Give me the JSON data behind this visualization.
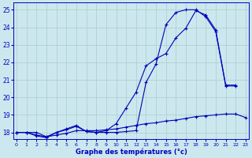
{
  "title": "Graphe des températures (°c)",
  "xlim": [
    -0.3,
    23.3
  ],
  "ylim": [
    17.6,
    25.4
  ],
  "xticks": [
    0,
    1,
    2,
    3,
    4,
    5,
    6,
    7,
    8,
    9,
    10,
    11,
    12,
    13,
    14,
    15,
    16,
    17,
    18,
    19,
    20,
    21,
    22,
    23
  ],
  "yticks": [
    18,
    19,
    20,
    21,
    22,
    23,
    24,
    25
  ],
  "bg_color": "#cce8ee",
  "line_color": "#0000bb",
  "grid_color": "#aacccc",
  "series1": {
    "x": [
      0,
      1,
      2,
      3,
      4,
      5,
      6,
      7,
      8,
      9,
      10,
      11,
      12,
      13,
      14,
      15,
      16,
      17,
      18,
      19,
      20,
      21,
      22
    ],
    "y": [
      18.0,
      18.0,
      18.0,
      17.75,
      18.0,
      18.15,
      18.35,
      18.05,
      18.0,
      18.0,
      18.0,
      18.05,
      18.1,
      20.85,
      21.9,
      24.15,
      24.85,
      25.0,
      25.0,
      24.6,
      23.75,
      20.65,
      20.65
    ]
  },
  "series2": {
    "x": [
      0,
      1,
      2,
      3,
      4,
      5,
      6,
      7,
      8,
      9,
      10,
      11,
      12,
      13,
      14,
      15,
      16,
      17,
      18,
      19,
      20,
      21,
      22
    ],
    "y": [
      18.0,
      18.0,
      17.8,
      17.7,
      18.0,
      18.2,
      18.4,
      18.05,
      18.0,
      18.1,
      18.5,
      19.4,
      20.3,
      21.8,
      22.2,
      22.5,
      23.4,
      23.95,
      24.95,
      24.7,
      23.85,
      20.7,
      20.7
    ]
  },
  "series3": {
    "x": [
      0,
      1,
      2,
      3,
      4,
      5,
      6,
      7,
      8,
      9,
      10,
      11,
      12,
      13,
      14,
      15,
      16,
      17,
      18,
      19,
      20,
      21,
      22,
      23
    ],
    "y": [
      18.0,
      18.0,
      17.85,
      17.75,
      17.85,
      17.95,
      18.1,
      18.1,
      18.1,
      18.15,
      18.2,
      18.3,
      18.4,
      18.5,
      18.55,
      18.65,
      18.7,
      18.8,
      18.9,
      18.95,
      19.0,
      19.05,
      19.05,
      18.85
    ]
  }
}
